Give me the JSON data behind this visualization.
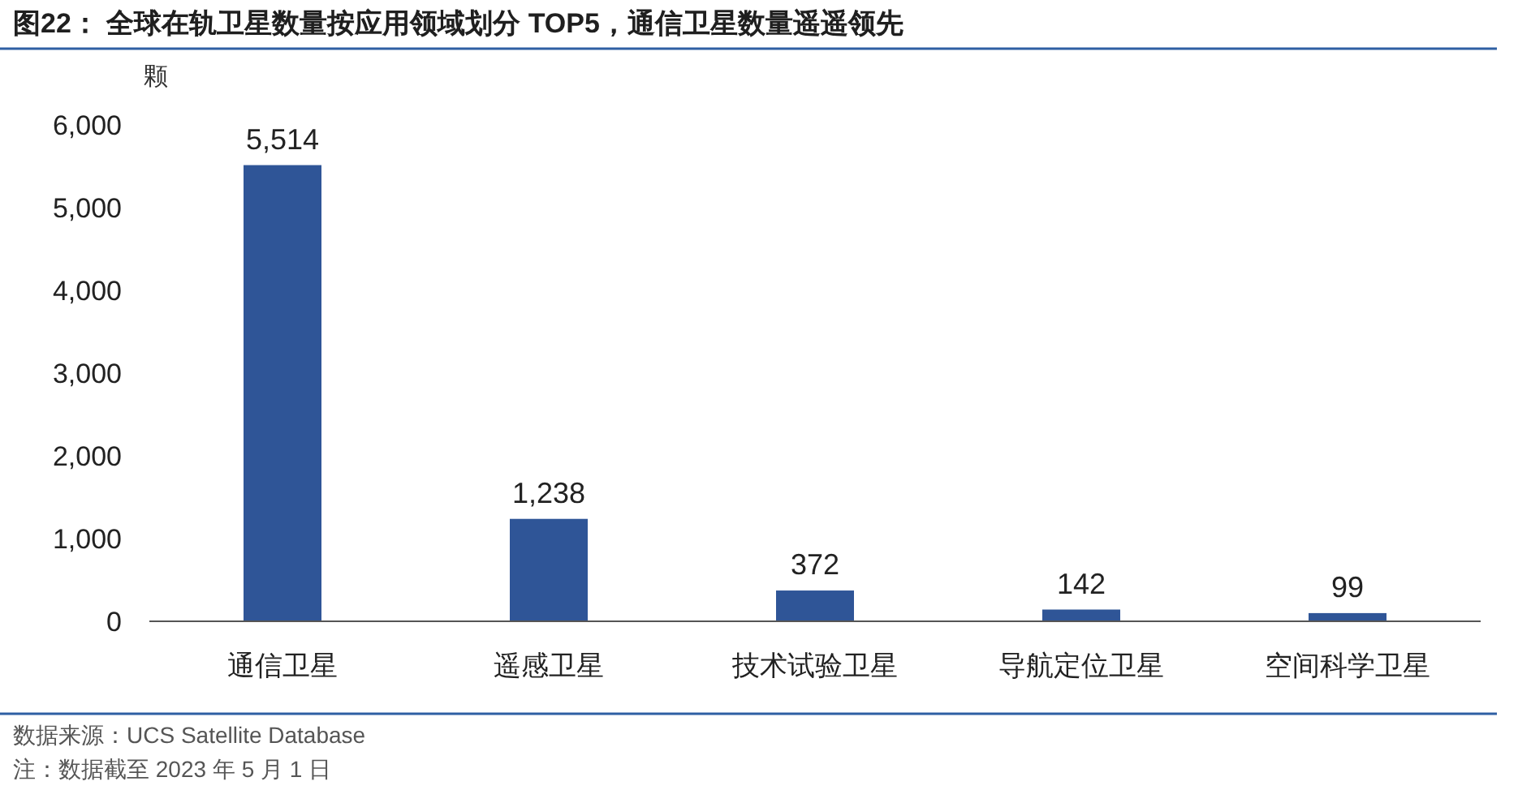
{
  "chart_data": {
    "type": "bar",
    "title": "图22：   全球在轨卫星数量按应用领域划分 TOP5，通信卫星数量遥遥领先",
    "ylabel": "颗",
    "categories": [
      "通信卫星",
      "遥感卫星",
      "技术试验卫星",
      "导航定位卫星",
      "空间科学卫星"
    ],
    "values": [
      5514,
      1238,
      372,
      142,
      99
    ],
    "value_labels": [
      "5,514",
      "1,238",
      "372",
      "142",
      "99"
    ],
    "color": "#2f5597",
    "ylim": [
      0,
      6000
    ],
    "yticks": [
      {
        "value": 0,
        "label": "0"
      },
      {
        "value": 1000,
        "label": "1,000"
      },
      {
        "value": 2000,
        "label": "2,000"
      },
      {
        "value": 3000,
        "label": "3,000"
      },
      {
        "value": 4000,
        "label": "4,000"
      },
      {
        "value": 5000,
        "label": "5,000"
      },
      {
        "value": 6000,
        "label": "6,000"
      }
    ],
    "grid": false,
    "annotations": [
      "数据来源：UCS Satellite Database",
      "注：数据截至 2023 年 5 月 1 日"
    ]
  }
}
